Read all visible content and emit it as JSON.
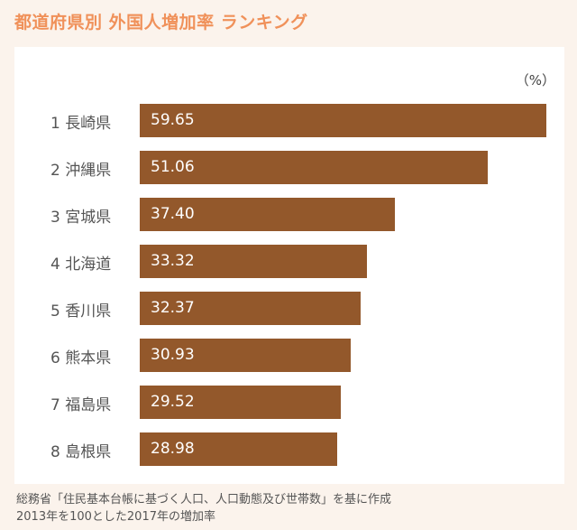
{
  "title": "都道府県別 外国人増加率 ランキング",
  "unit_label": "（%）",
  "source": {
    "line1": "総務省「住民基本台帳に基づく人口、人口動態及び世帯数」を基に作成",
    "line2": "2013年を100とした2017年の増加率"
  },
  "colors": {
    "bar": "#93582b",
    "title": "#f0915a",
    "panel": "#ffffff",
    "background": "#fbf3ec"
  },
  "chart_data": {
    "type": "bar",
    "orientation": "horizontal",
    "title": "都道府県別 外国人増加率 ランキング",
    "unit": "（%）",
    "xlim": [
      0,
      60
    ],
    "grid": false,
    "legend": "none",
    "categories": [
      "1 長崎県",
      "2 沖縄県",
      "3 宮城県",
      "4 北海道",
      "5 香川県",
      "6 熊本県",
      "7 福島県",
      "8 島根県"
    ],
    "values": [
      59.65,
      51.06,
      37.4,
      33.32,
      32.37,
      30.93,
      29.52,
      28.98
    ],
    "value_labels": [
      "59.65",
      "51.06",
      "37.40",
      "33.32",
      "32.37",
      "30.93",
      "29.52",
      "28.98"
    ]
  }
}
